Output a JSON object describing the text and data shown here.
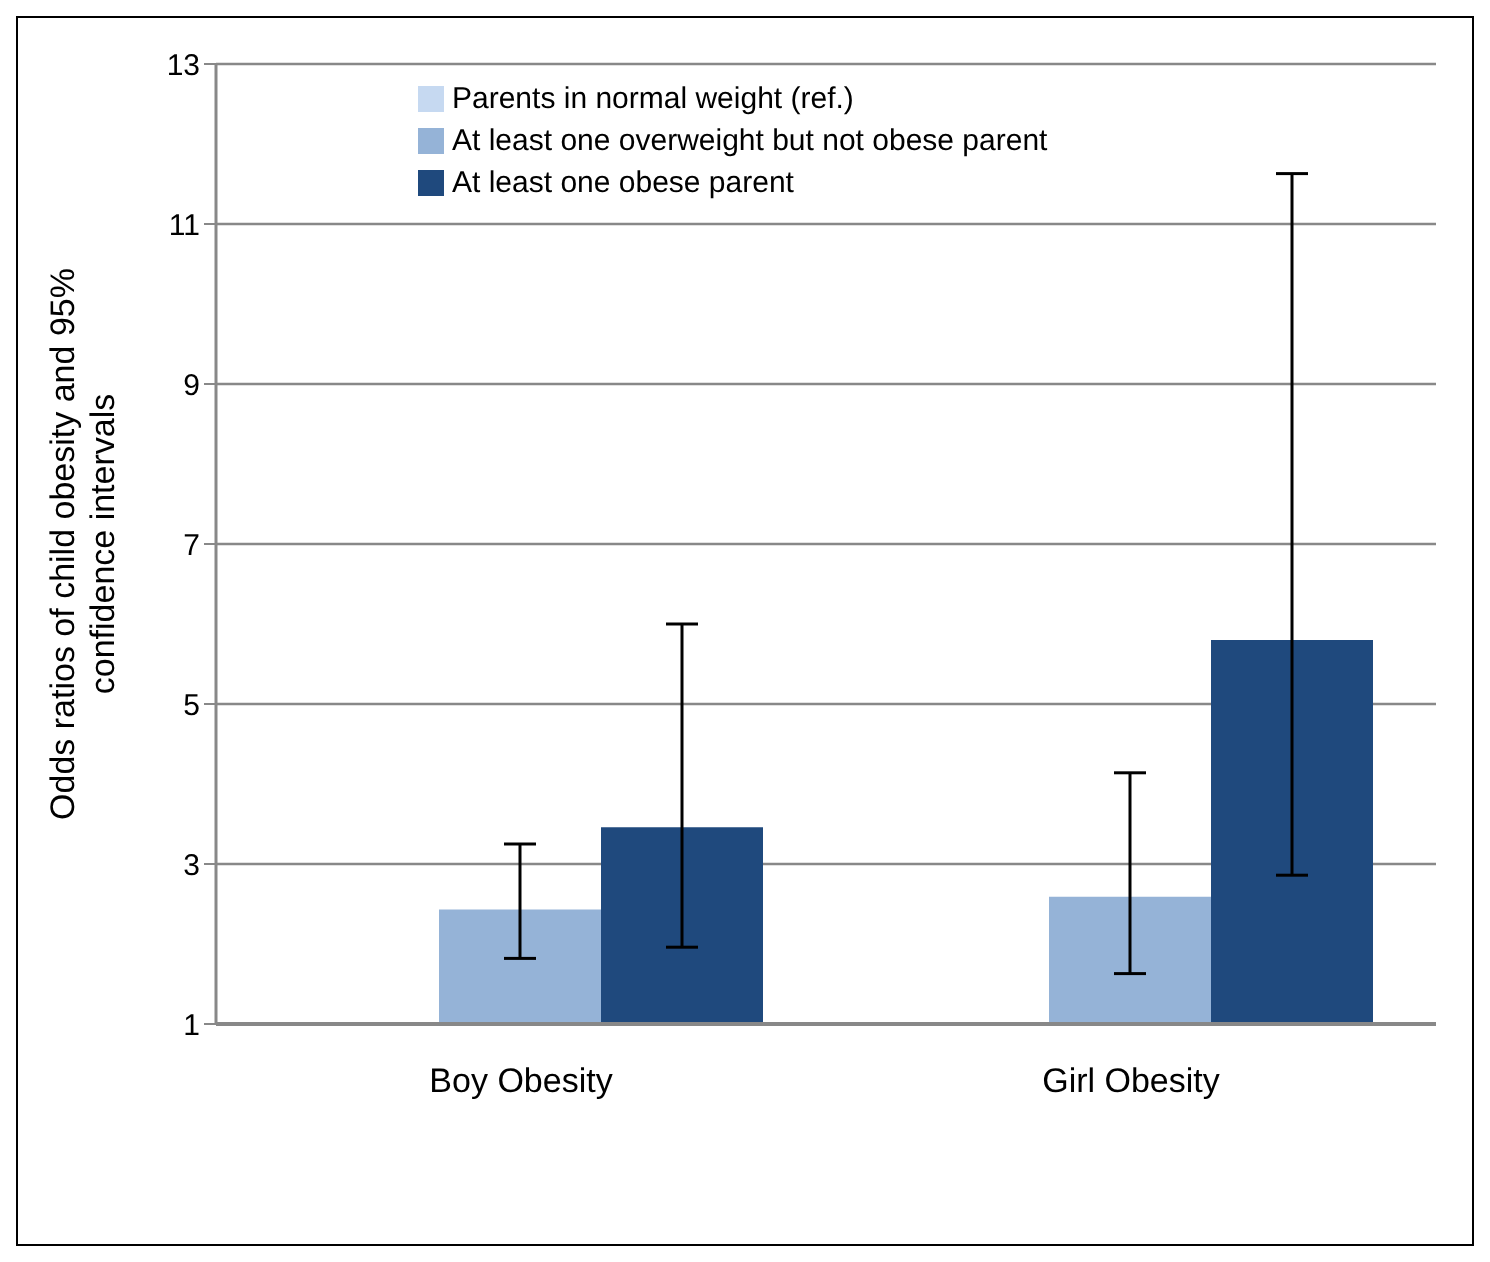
{
  "chart_data": {
    "type": "bar",
    "ylabel": "Odds ratios of child obesity and 95% confidence intervals",
    "categories": [
      "Boy Obesity",
      "Girl Obesity"
    ],
    "series": [
      {
        "name": "Parents in normal weight (ref.)",
        "color": "#c6d9f1",
        "values": [
          1,
          1
        ]
      },
      {
        "name": "At least one overweight but not obese parent",
        "color": "#95b3d7",
        "values": [
          2.43,
          2.59
        ],
        "errors": [
          [
            1.82,
            3.25
          ],
          [
            1.63,
            4.14
          ]
        ]
      },
      {
        "name": "At least one obese parent",
        "color": "#1f497d",
        "values": [
          3.46,
          5.8
        ],
        "errors": [
          [
            1.96,
            6.0
          ],
          [
            2.86,
            11.63
          ]
        ]
      }
    ],
    "ylim": [
      1,
      13
    ],
    "yticks": [
      1,
      3,
      5,
      7,
      9,
      11,
      13
    ],
    "grid": "y",
    "legend": "top"
  }
}
